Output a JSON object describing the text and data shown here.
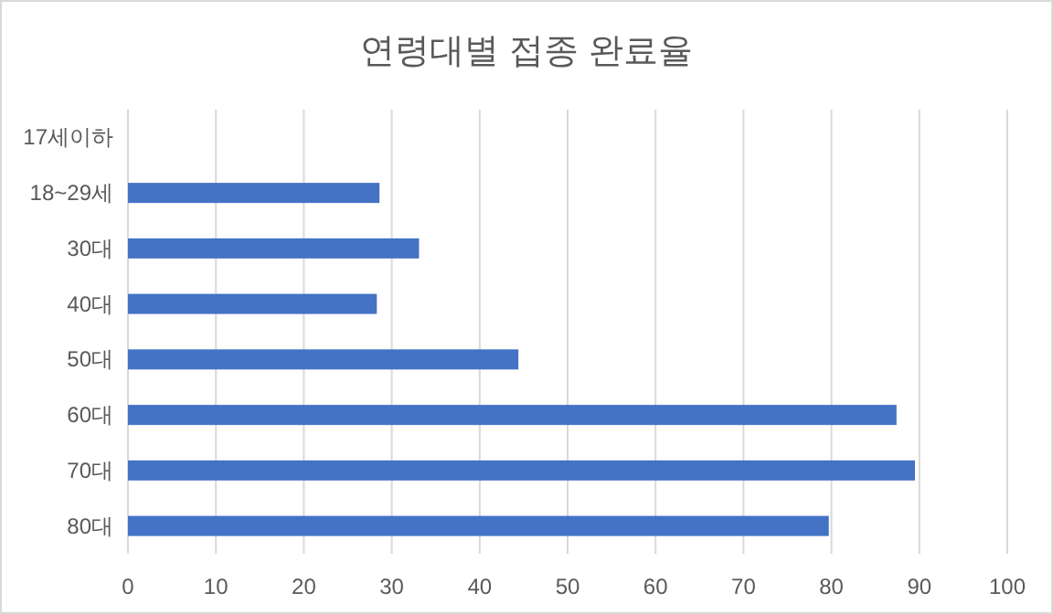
{
  "chart_data": {
    "type": "bar",
    "orientation": "horizontal",
    "title": "연령대별 접종 완료율",
    "categories": [
      "17세이하",
      "18~29세",
      "30대",
      "40대",
      "50대",
      "60대",
      "70대",
      "80대"
    ],
    "values": [
      null,
      28.6,
      33.1,
      28.3,
      44.4,
      87.4,
      89.5,
      79.7
    ],
    "color": "#4472c4",
    "xlim": [
      0,
      100
    ],
    "xticks": [
      0,
      10,
      20,
      30,
      40,
      50,
      60,
      70,
      80,
      90,
      100
    ],
    "grid": "x"
  }
}
